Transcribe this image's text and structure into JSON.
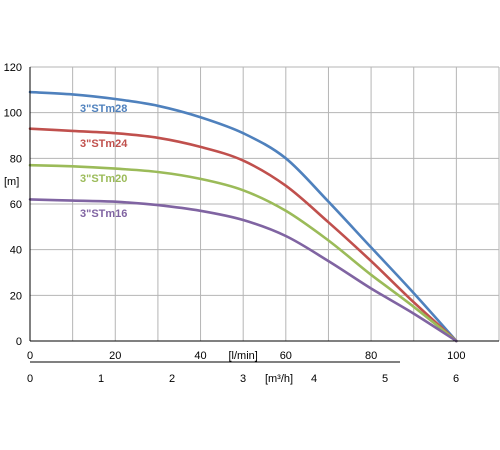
{
  "chart_data": {
    "type": "line",
    "title": "",
    "ylabel": "[m]",
    "xlabel": "[l/min]",
    "x2label": "[m³/h]",
    "xlim": [
      0,
      110
    ],
    "ylim": [
      0,
      120
    ],
    "yticks": [
      "0",
      "20",
      "40",
      "60",
      "80",
      "100",
      "120"
    ],
    "xticks": [
      "0",
      "20",
      "40",
      "60",
      "80",
      "100"
    ],
    "x2ticks": [
      "0",
      "1",
      "2",
      "3",
      "4",
      "5",
      "6"
    ],
    "grid": true,
    "legend": "inline",
    "series": [
      {
        "name": "3\"STm28",
        "color": "#4f81bd",
        "x": [
          0,
          10,
          20,
          30,
          40,
          50,
          60,
          70,
          80,
          90,
          100
        ],
        "y": [
          109,
          108,
          106,
          103,
          98,
          91,
          80,
          61,
          41,
          21,
          0
        ]
      },
      {
        "name": "3\"STm24",
        "color": "#c0504d",
        "x": [
          0,
          10,
          20,
          30,
          40,
          50,
          60,
          70,
          80,
          90,
          100
        ],
        "y": [
          93,
          92,
          91,
          89,
          85,
          79,
          68,
          52,
          35,
          17,
          0
        ]
      },
      {
        "name": "3\"STm20",
        "color": "#9bbb59",
        "x": [
          0,
          10,
          20,
          30,
          40,
          50,
          60,
          70,
          80,
          90,
          100
        ],
        "y": [
          77,
          76.5,
          75.5,
          74,
          71,
          66,
          57,
          44,
          29,
          15,
          0
        ]
      },
      {
        "name": "3\"STm16",
        "color": "#8064a2",
        "x": [
          0,
          10,
          20,
          30,
          40,
          50,
          60,
          70,
          80,
          90,
          100
        ],
        "y": [
          62,
          61.5,
          61,
          59.5,
          57,
          53,
          46,
          35,
          23,
          12,
          0
        ]
      }
    ]
  }
}
